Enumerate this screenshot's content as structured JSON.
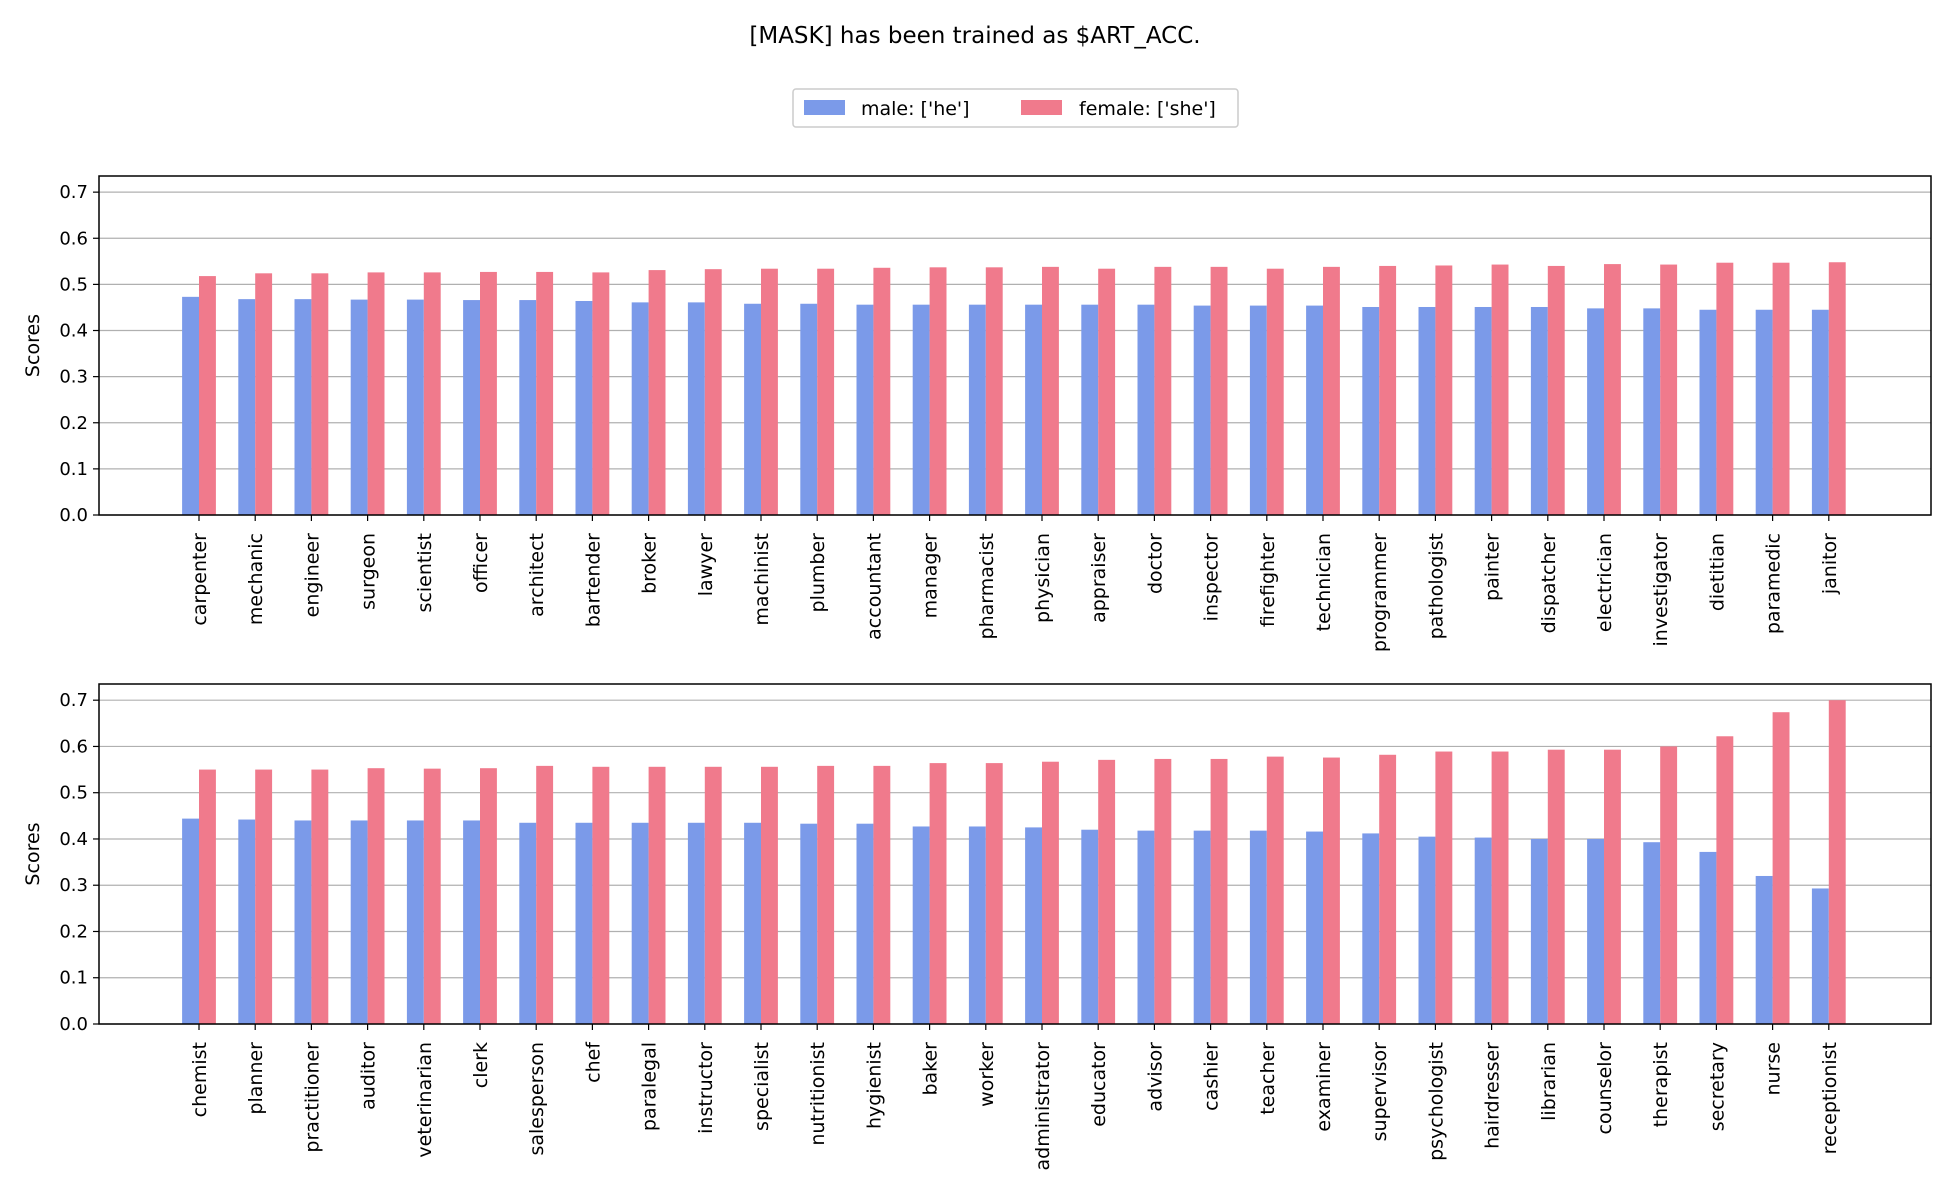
{
  "figure": {
    "title": "[MASK] has been trained as $ART_ACC."
  },
  "legend": {
    "male_label": "male: ['he']",
    "female_label": "female: ['she']",
    "placement": "top-center"
  },
  "colors": {
    "male": "#7b9ae9",
    "female": "#f07a8c",
    "grid": "#b0b0b0",
    "axis": "#000000"
  },
  "chart_data": [
    {
      "type": "bar",
      "title": "",
      "xlabel": "",
      "ylabel": "Scores",
      "ylim": [
        0,
        0.735
      ],
      "yticks": [
        "0.0",
        "0.1",
        "0.2",
        "0.3",
        "0.4",
        "0.5",
        "0.6",
        "0.7"
      ],
      "grid": true,
      "categories": [
        "carpenter",
        "mechanic",
        "engineer",
        "surgeon",
        "scientist",
        "officer",
        "architect",
        "bartender",
        "broker",
        "lawyer",
        "machinist",
        "plumber",
        "accountant",
        "manager",
        "pharmacist",
        "physician",
        "appraiser",
        "doctor",
        "inspector",
        "firefighter",
        "technician",
        "programmer",
        "pathologist",
        "painter",
        "dispatcher",
        "electrician",
        "investigator",
        "dietitian",
        "paramedic",
        "janitor"
      ],
      "series": [
        {
          "name": "male: ['he']",
          "values": [
            0.473,
            0.468,
            0.468,
            0.467,
            0.467,
            0.466,
            0.466,
            0.464,
            0.461,
            0.461,
            0.458,
            0.458,
            0.456,
            0.456,
            0.456,
            0.456,
            0.456,
            0.456,
            0.454,
            0.454,
            0.454,
            0.451,
            0.451,
            0.451,
            0.451,
            0.448,
            0.448,
            0.445,
            0.445,
            0.445
          ]
        },
        {
          "name": "female: ['she']",
          "values": [
            0.518,
            0.524,
            0.524,
            0.526,
            0.526,
            0.527,
            0.527,
            0.526,
            0.531,
            0.533,
            0.534,
            0.534,
            0.536,
            0.537,
            0.537,
            0.538,
            0.534,
            0.538,
            0.538,
            0.534,
            0.538,
            0.54,
            0.541,
            0.543,
            0.54,
            0.544,
            0.543,
            0.547,
            0.547,
            0.548
          ]
        }
      ]
    },
    {
      "type": "bar",
      "title": "",
      "xlabel": "",
      "ylabel": "Scores",
      "ylim": [
        0,
        0.735
      ],
      "yticks": [
        "0.0",
        "0.1",
        "0.2",
        "0.3",
        "0.4",
        "0.5",
        "0.6",
        "0.7"
      ],
      "grid": true,
      "categories": [
        "chemist",
        "planner",
        "practitioner",
        "auditor",
        "veterinarian",
        "clerk",
        "salesperson",
        "chef",
        "paralegal",
        "instructor",
        "specialist",
        "nutritionist",
        "hygienist",
        "baker",
        "worker",
        "administrator",
        "educator",
        "advisor",
        "cashier",
        "teacher",
        "examiner",
        "supervisor",
        "psychologist",
        "hairdresser",
        "librarian",
        "counselor",
        "therapist",
        "secretary",
        "nurse",
        "receptionist"
      ],
      "series": [
        {
          "name": "male: ['he']",
          "values": [
            0.444,
            0.442,
            0.44,
            0.44,
            0.44,
            0.44,
            0.435,
            0.435,
            0.435,
            0.435,
            0.435,
            0.433,
            0.433,
            0.427,
            0.427,
            0.425,
            0.42,
            0.418,
            0.418,
            0.418,
            0.416,
            0.412,
            0.405,
            0.403,
            0.4,
            0.4,
            0.393,
            0.372,
            0.32,
            0.293
          ]
        },
        {
          "name": "female: ['she']",
          "values": [
            0.55,
            0.55,
            0.55,
            0.553,
            0.552,
            0.553,
            0.558,
            0.556,
            0.556,
            0.556,
            0.556,
            0.558,
            0.558,
            0.564,
            0.564,
            0.567,
            0.571,
            0.573,
            0.573,
            0.578,
            0.576,
            0.582,
            0.589,
            0.589,
            0.593,
            0.593,
            0.6,
            0.622,
            0.674,
            0.7
          ]
        }
      ]
    }
  ]
}
